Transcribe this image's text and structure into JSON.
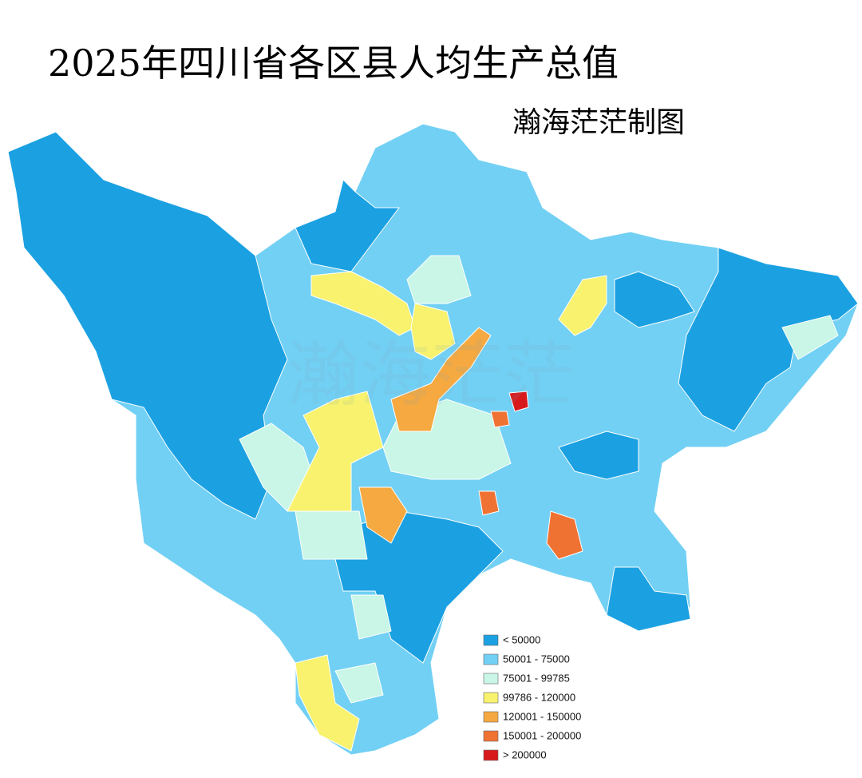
{
  "title": "2025年四川省各区县人均生产总值",
  "subtitle": "瀚海茫茫制图",
  "watermark": "瀚海茫茫",
  "legend": [
    {
      "label": "< 50000",
      "color": "#1ba1e2"
    },
    {
      "label": "50001 - 75000",
      "color": "#72d0f4"
    },
    {
      "label": "75001 - 99785",
      "color": "#c9f6e6"
    },
    {
      "label": "99786 - 120000",
      "color": "#f8f26e"
    },
    {
      "label": "120001 - 150000",
      "color": "#f5a940"
    },
    {
      "label": "150001 - 200000",
      "color": "#f07232"
    },
    {
      "label": "> 200000",
      "color": "#d7191c"
    }
  ]
}
